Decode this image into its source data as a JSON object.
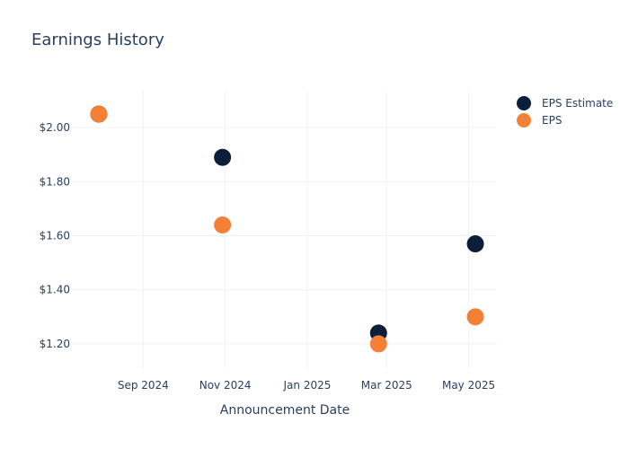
{
  "chart_data": {
    "type": "scatter",
    "title": "Earnings History",
    "xlabel": "Announcement Date",
    "ylabel": "",
    "x_ticks": [
      "Sep 2024",
      "Nov 2024",
      "Jan 2025",
      "Mar 2025",
      "May 2025"
    ],
    "y_ticks": [
      "$1.20",
      "$1.40",
      "$1.60",
      "$1.80",
      "$2.00"
    ],
    "ylim": [
      1.11,
      2.14
    ],
    "xlim": [
      "2024-07-10",
      "2025-05-22"
    ],
    "grid": true,
    "legend_position": "top-right",
    "series": [
      {
        "name": "EPS Estimate",
        "color": "#0b1f3a",
        "points": [
          {
            "x": "2024-07-30",
            "y": 2.05
          },
          {
            "x": "2024-10-30",
            "y": 1.89
          },
          {
            "x": "2025-02-23",
            "y": 1.24
          },
          {
            "x": "2025-05-06",
            "y": 1.57
          }
        ]
      },
      {
        "name": "EPS",
        "color": "#f48036",
        "points": [
          {
            "x": "2024-07-30",
            "y": 2.05
          },
          {
            "x": "2024-10-30",
            "y": 1.64
          },
          {
            "x": "2025-02-23",
            "y": 1.2
          },
          {
            "x": "2025-05-06",
            "y": 1.3
          }
        ]
      }
    ]
  }
}
